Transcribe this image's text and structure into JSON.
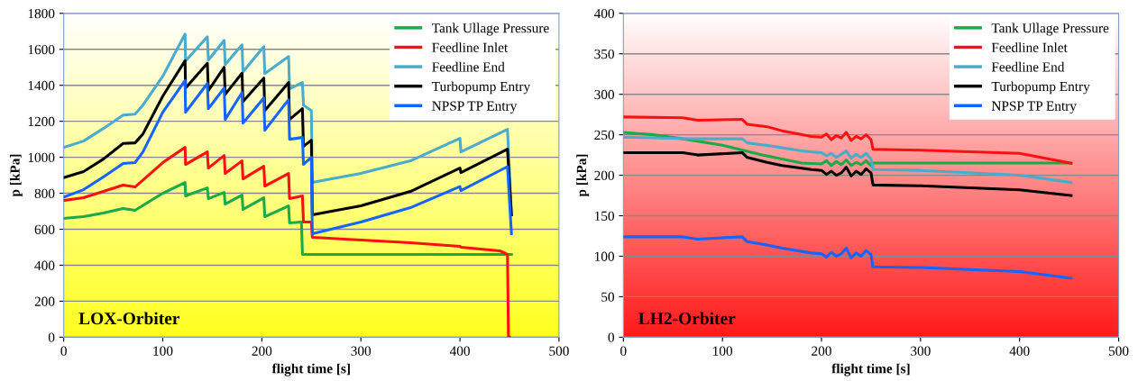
{
  "chart_data": [
    {
      "type": "line",
      "xlabel": "flight time [s]",
      "ylabel": "p [kPa]",
      "annotations": [
        "LOX-Orbiter"
      ],
      "xlim": [
        0,
        500
      ],
      "ylim": [
        0,
        1800
      ],
      "xticks": [
        0,
        100,
        200,
        300,
        400,
        500
      ],
      "yticks": [
        0,
        200,
        400,
        600,
        800,
        1000,
        1200,
        1400,
        1600,
        1800
      ],
      "grid": "y",
      "legend": "top right",
      "line_style": "solid",
      "marker": "none",
      "series": [
        {
          "name": "Tank Ullage Pressure",
          "color": "#1aaa4a",
          "x": [
            0,
            20,
            40,
            60,
            72,
            100,
            122.5,
            123,
            145,
            146,
            162,
            163,
            180,
            181,
            202,
            203,
            227,
            228,
            240,
            241,
            300,
            400,
            452
          ],
          "values": [
            660,
            670,
            690,
            715,
            705,
            800,
            860,
            785,
            830,
            770,
            805,
            740,
            790,
            710,
            775,
            670,
            730,
            635,
            640,
            460,
            460,
            460,
            460
          ]
        },
        {
          "name": "Feedline Inlet",
          "color": "#ff1010",
          "x": [
            0,
            20,
            40,
            60,
            72,
            100,
            122.5,
            123,
            145,
            146,
            162,
            163,
            180,
            181,
            202,
            203,
            227,
            228,
            241,
            242,
            250,
            251,
            300,
            350,
            400,
            401,
            440,
            448,
            449,
            450
          ],
          "values": [
            760,
            775,
            810,
            845,
            835,
            970,
            1055,
            960,
            1030,
            940,
            1010,
            910,
            980,
            880,
            950,
            840,
            910,
            770,
            785,
            640,
            640,
            555,
            540,
            525,
            505,
            500,
            480,
            460,
            0,
            0
          ]
        },
        {
          "name": "Feedline End",
          "color": "#4aaccc",
          "x": [
            0,
            20,
            40,
            60,
            72,
            80,
            100,
            122.5,
            123,
            145,
            146,
            162,
            163,
            180,
            181,
            202,
            203,
            227,
            228,
            241,
            242,
            250,
            251,
            300,
            350,
            400,
            401,
            448,
            452
          ],
          "values": [
            1055,
            1090,
            1160,
            1235,
            1240,
            1290,
            1450,
            1685,
            1535,
            1670,
            1540,
            1650,
            1515,
            1625,
            1475,
            1615,
            1465,
            1560,
            1380,
            1415,
            1290,
            1260,
            860,
            910,
            980,
            1105,
            1030,
            1155,
            680
          ]
        },
        {
          "name": "Turbopump Entry",
          "color": "#000000",
          "x": [
            0,
            20,
            40,
            60,
            72,
            80,
            100,
            122.5,
            123,
            145,
            146,
            162,
            163,
            180,
            181,
            202,
            203,
            227,
            228,
            241,
            242,
            250,
            251,
            300,
            350,
            400,
            401,
            448,
            452
          ],
          "values": [
            887,
            920,
            990,
            1077,
            1080,
            1130,
            1340,
            1537,
            1385,
            1523,
            1370,
            1500,
            1350,
            1467,
            1310,
            1440,
            1260,
            1415,
            1210,
            1270,
            1060,
            1095,
            680,
            730,
            810,
            940,
            915,
            1045,
            680
          ]
        },
        {
          "name": "NPSP TP Entry",
          "color": "#1464ff",
          "x": [
            0,
            20,
            40,
            60,
            72,
            80,
            100,
            122.5,
            123,
            145,
            146,
            162,
            163,
            180,
            181,
            202,
            203,
            227,
            228,
            241,
            242,
            250,
            251,
            300,
            350,
            400,
            401,
            448,
            452
          ],
          "values": [
            778,
            820,
            890,
            965,
            970,
            1030,
            1250,
            1427,
            1250,
            1410,
            1270,
            1385,
            1210,
            1360,
            1190,
            1330,
            1150,
            1320,
            1100,
            1110,
            960,
            1000,
            575,
            640,
            720,
            837,
            815,
            948,
            575
          ]
        }
      ]
    },
    {
      "type": "line",
      "xlabel": "flight time [s]",
      "ylabel": "p [kPa]",
      "annotations": [
        "LH2-Orbiter"
      ],
      "xlim": [
        0,
        500
      ],
      "ylim": [
        0,
        400
      ],
      "xticks": [
        0,
        100,
        200,
        300,
        400,
        500
      ],
      "yticks": [
        0,
        50,
        100,
        150,
        200,
        250,
        300,
        350,
        400
      ],
      "grid": "y",
      "legend": "top right",
      "line_style": "solid",
      "marker": "none",
      "series": [
        {
          "name": "Tank Ullage Pressure",
          "color": "#1aaa4a",
          "x": [
            0,
            30,
            60,
            100,
            140,
            180,
            200,
            205,
            210,
            215,
            220,
            225,
            230,
            235,
            240,
            245,
            250,
            252,
            300,
            400,
            452
          ],
          "values": [
            253,
            250,
            245,
            237,
            225,
            215,
            214,
            218,
            212,
            217,
            213,
            219,
            212,
            216,
            213,
            218,
            212,
            215,
            215,
            215,
            215
          ]
        },
        {
          "name": "Feedline Inlet",
          "color": "#ff1010",
          "x": [
            0,
            60,
            75,
            120,
            125,
            145,
            160,
            190,
            200,
            205,
            210,
            215,
            220,
            225,
            230,
            235,
            240,
            245,
            250,
            252,
            300,
            400,
            452
          ],
          "values": [
            272,
            271,
            268,
            269,
            263,
            260,
            255,
            248,
            247,
            251,
            244,
            249,
            246,
            253,
            243,
            248,
            245,
            250,
            244,
            232,
            231,
            227,
            215
          ]
        },
        {
          "name": "Feedline End",
          "color": "#4aaccc",
          "x": [
            0,
            70,
            120,
            125,
            150,
            180,
            200,
            205,
            210,
            215,
            220,
            225,
            230,
            235,
            240,
            245,
            250,
            252,
            300,
            400,
            452
          ],
          "values": [
            247,
            245,
            245,
            240,
            236,
            230,
            228,
            224,
            227,
            222,
            226,
            230,
            221,
            226,
            222,
            227,
            220,
            207,
            206,
            200,
            191
          ]
        },
        {
          "name": "Turbopump Entry",
          "color": "#000000",
          "x": [
            0,
            60,
            75,
            120,
            125,
            145,
            160,
            190,
            200,
            205,
            210,
            215,
            220,
            225,
            230,
            235,
            240,
            245,
            250,
            252,
            300,
            400,
            452
          ],
          "values": [
            228,
            228,
            225,
            228,
            222,
            216,
            212,
            207,
            206,
            201,
            205,
            200,
            203,
            210,
            199,
            205,
            201,
            208,
            203,
            188,
            187,
            182,
            175
          ]
        },
        {
          "name": "NPSP TP Entry",
          "color": "#1464ff",
          "x": [
            0,
            60,
            75,
            120,
            125,
            145,
            160,
            190,
            200,
            205,
            210,
            215,
            220,
            225,
            230,
            235,
            240,
            245,
            250,
            252,
            300,
            400,
            452
          ],
          "values": [
            124,
            124,
            121,
            124,
            118,
            114,
            110,
            104,
            103,
            99,
            105,
            100,
            103,
            110,
            98,
            104,
            100,
            107,
            102,
            87,
            86,
            81,
            73
          ]
        }
      ]
    }
  ]
}
